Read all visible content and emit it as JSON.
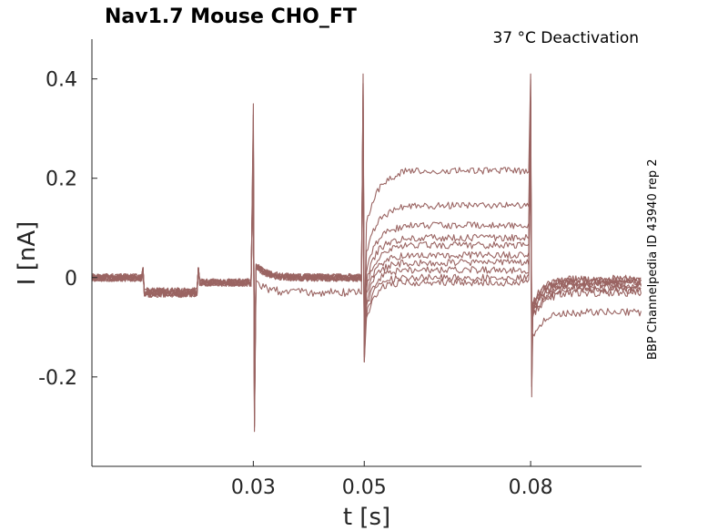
{
  "chart_data": {
    "type": "line",
    "title": "Nav1.7  Mouse  CHO_FT",
    "subtitle": "37 °C  Deactivation",
    "side_label": "BBP Channelpedia ID 43940 rep 2",
    "xlabel": "t [s]",
    "ylabel": "I [nA]",
    "xlim": [
      0.0009,
      0.1
    ],
    "ylim": [
      -0.38,
      0.48
    ],
    "xticks": [
      0.03,
      0.05,
      0.08
    ],
    "xtick_labels": [
      "0.03",
      "0.05",
      "0.08"
    ],
    "yticks": [
      0.4,
      0.2,
      0,
      -0.2
    ],
    "ytick_labels": [
      "0.4",
      "0.2",
      "0",
      "-0.2"
    ],
    "grid": false,
    "line_color": "#9a6462",
    "trace_count": 10,
    "segments": {
      "baseline_end": 0.0101,
      "step1_end": 0.0201,
      "step2_end": 0.03,
      "tail_start": 0.05,
      "tail_end": 0.08
    },
    "spikes": [
      {
        "t": 0.03,
        "max": 0.35,
        "min": -0.31
      },
      {
        "t": 0.05,
        "max": 0.41,
        "min": -0.17
      },
      {
        "t": 0.08,
        "max": 0.41,
        "min": -0.24
      }
    ],
    "series": [
      {
        "steady_tail": 0.215,
        "after": -0.07
      },
      {
        "steady_tail": 0.145,
        "after": -0.03
      },
      {
        "steady_tail": 0.105,
        "after": -0.025
      },
      {
        "steady_tail": 0.08,
        "after": -0.02
      },
      {
        "steady_tail": 0.065,
        "after": -0.015
      },
      {
        "steady_tail": 0.045,
        "after": -0.012
      },
      {
        "steady_tail": 0.03,
        "after": -0.01
      },
      {
        "steady_tail": 0.015,
        "after": -0.008
      },
      {
        "steady_tail": 0.0,
        "after": -0.005
      },
      {
        "steady_tail": -0.01,
        "after": -0.003
      }
    ]
  }
}
